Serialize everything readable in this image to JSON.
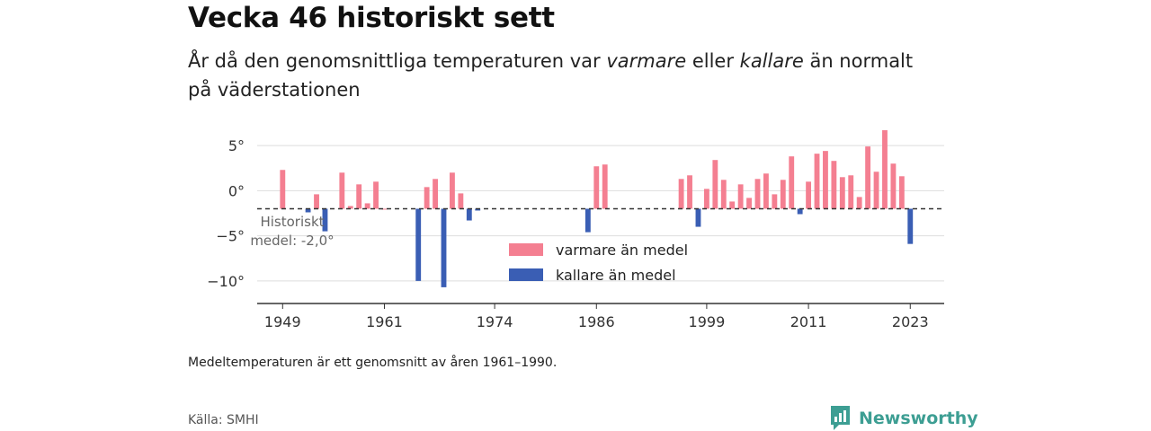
{
  "title": "Vecka 46 historiskt sett",
  "subtitle": {
    "part1": "År då den genomsnittliga temperaturen var ",
    "warmer": "varmare",
    "part2": " eller ",
    "colder": "kallare",
    "part3": " än normalt på väderstationen"
  },
  "footnote": "Medeltemperaturen är ett genomsnitt av åren 1961–1990.",
  "source": "Källa: SMHI",
  "brand": {
    "name": "Newsworthy",
    "icon": "newsworthy-logo-icon",
    "color": "#3d9e93"
  },
  "chart_data": {
    "type": "bar",
    "baseline": -2.0,
    "baseline_label": [
      "Historiskt",
      "medel: -2,0°"
    ],
    "ylim": [
      -12.5,
      7.2
    ],
    "y_ticks": [
      5,
      0,
      -5,
      -10
    ],
    "y_tick_labels": [
      "5°",
      "0°",
      "−5°",
      "−10°"
    ],
    "x_ticks": [
      1949,
      1961,
      1974,
      1986,
      1999,
      2011,
      2023
    ],
    "xlim": [
      1946,
      2027
    ],
    "colors": {
      "warmer": "#f47f91",
      "colder": "#3a5eb4",
      "grid": "#dddddd",
      "axis": "#333333"
    },
    "legend": {
      "position": "center",
      "items": [
        {
          "label": "varmare än medel",
          "key": "warmer"
        },
        {
          "label": "kallare än medel",
          "key": "colder"
        }
      ]
    },
    "x": [
      1949,
      1952,
      1953,
      1954,
      1956,
      1957,
      1958,
      1959,
      1960,
      1961,
      1965,
      1966,
      1967,
      1968,
      1969,
      1970,
      1971,
      1972,
      1985,
      1986,
      1987,
      1996,
      1997,
      1998,
      1999,
      2000,
      2001,
      2002,
      2003,
      2004,
      2005,
      2006,
      2007,
      2008,
      2009,
      2010,
      2011,
      2012,
      2013,
      2014,
      2015,
      2016,
      2017,
      2018,
      2019,
      2020,
      2021,
      2022,
      2023
    ],
    "values": [
      2.3,
      -2.4,
      -0.4,
      -4.5,
      2.0,
      -1.7,
      0.7,
      -1.4,
      1.0,
      -2.0,
      -10.0,
      0.4,
      1.3,
      -10.7,
      2.0,
      -0.3,
      -3.3,
      -2.2,
      -4.6,
      2.7,
      2.9,
      1.3,
      1.7,
      -4.0,
      0.2,
      3.4,
      1.2,
      -1.2,
      0.7,
      -0.8,
      1.3,
      1.9,
      -0.4,
      1.2,
      3.8,
      -2.6,
      1.0,
      4.1,
      4.4,
      3.3,
      1.5,
      1.7,
      -0.7,
      4.9,
      2.1,
      6.7,
      3.0,
      1.6,
      -5.9
    ]
  }
}
